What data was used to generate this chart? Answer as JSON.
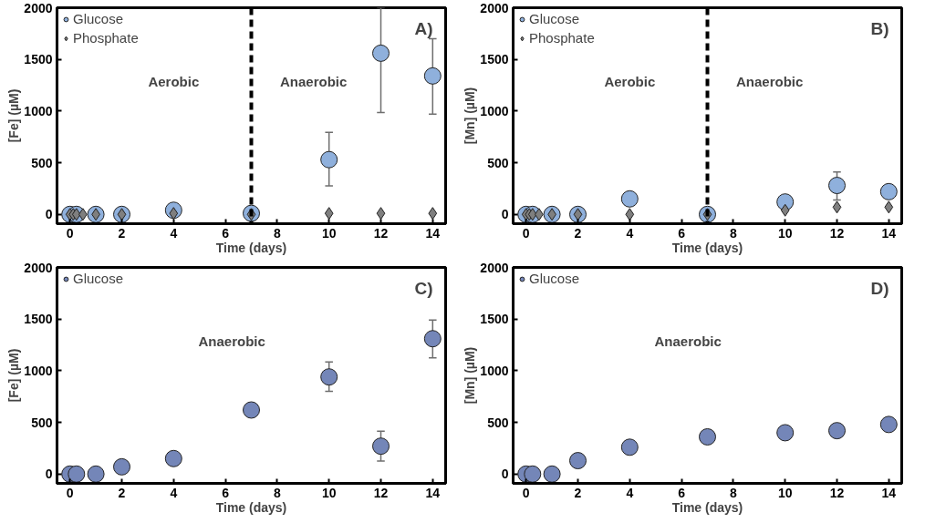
{
  "chart_data": [
    {
      "type": "scatter",
      "xlabel": "Time (days)",
      "ylabel": "[Fe] (µM)",
      "xlim": [
        -0.5,
        14.5
      ],
      "ylim": [
        -90,
        2000
      ],
      "xticks": [
        0,
        2,
        4,
        6,
        8,
        10,
        12,
        14
      ],
      "yticks": [
        0,
        500,
        1000,
        1500,
        2000
      ],
      "grid": false,
      "legend": "top left",
      "annotations": [
        "A)",
        "Aerobic",
        "Anaerobic"
      ],
      "ref_lines": [
        {
          "axis": "x",
          "value": 7,
          "color": "#000000",
          "line_style": "dashed"
        }
      ],
      "series": [
        {
          "name": "Glucose",
          "color": "#8fb0dc",
          "marker": "circle",
          "x": [
            0,
            0.25,
            1,
            2,
            4,
            7,
            10,
            12,
            14
          ],
          "values": [
            0,
            0,
            0,
            0,
            40,
            10,
            530,
            1560,
            1340
          ],
          "errors": [
            null,
            null,
            null,
            null,
            null,
            null,
            [
              275,
              795
            ],
            [
              985,
              2000
            ],
            [
              970,
              1700
            ]
          ]
        },
        {
          "name": "Phosphate",
          "color": "#7f7f7f",
          "marker": "diamond",
          "x": [
            0,
            0.125,
            0.25,
            0.5,
            1,
            2,
            4,
            7,
            10,
            12,
            14
          ],
          "values": [
            0,
            0,
            0,
            0,
            0,
            0,
            10,
            0,
            10,
            10,
            10
          ]
        }
      ]
    },
    {
      "type": "scatter",
      "xlabel": "Time (days)",
      "ylabel": "[Mn] (µM)",
      "xlim": [
        -0.5,
        14.5
      ],
      "ylim": [
        -90,
        2000
      ],
      "xticks": [
        0,
        2,
        4,
        6,
        8,
        10,
        12,
        14
      ],
      "yticks": [
        0,
        500,
        1000,
        1500,
        2000
      ],
      "grid": false,
      "legend": "top left",
      "annotations": [
        "B)",
        "Aerobic",
        "Anaerobic"
      ],
      "ref_lines": [
        {
          "axis": "x",
          "value": 7,
          "color": "#000000",
          "line_style": "dashed"
        }
      ],
      "series": [
        {
          "name": "Glucose",
          "color": "#8fb0dc",
          "marker": "circle",
          "x": [
            0,
            0.25,
            1,
            2,
            4,
            7,
            10,
            12,
            14
          ],
          "values": [
            0,
            0,
            0,
            0,
            150,
            0,
            120,
            280,
            220
          ],
          "errors": [
            null,
            null,
            null,
            null,
            null,
            null,
            null,
            [
              140,
              410
            ],
            null
          ]
        },
        {
          "name": "Phosphate",
          "color": "#7f7f7f",
          "marker": "diamond",
          "x": [
            0,
            0.125,
            0.25,
            0.5,
            1,
            2,
            4,
            7,
            10,
            12,
            14
          ],
          "values": [
            0,
            0,
            0,
            0,
            0,
            0,
            0,
            0,
            40,
            70,
            70
          ]
        }
      ]
    },
    {
      "type": "scatter",
      "xlabel": "Time (days)",
      "ylabel": "[Fe] (µM)",
      "xlim": [
        -0.5,
        14.5
      ],
      "ylim": [
        -90,
        2000
      ],
      "xticks": [
        0,
        2,
        4,
        6,
        8,
        10,
        12,
        14
      ],
      "yticks": [
        0,
        500,
        1000,
        1500,
        2000
      ],
      "grid": false,
      "legend": "top left",
      "annotations": [
        "C)",
        "Anaerobic"
      ],
      "series": [
        {
          "name": "Glucose",
          "color": "#7486b8",
          "marker": "circle",
          "x": [
            0,
            0.25,
            1,
            2,
            4,
            7,
            10,
            12,
            14
          ],
          "values": [
            0,
            0,
            0,
            70,
            150,
            620,
            940,
            270,
            1310
          ],
          "errors": [
            null,
            null,
            null,
            null,
            null,
            null,
            [
              800,
              1085
            ],
            [
              125,
              415
            ],
            [
              1125,
              1490
            ]
          ]
        }
      ]
    },
    {
      "type": "scatter",
      "xlabel": "Time (days)",
      "ylabel": "[Mn] (µM)",
      "xlim": [
        -0.5,
        14.5
      ],
      "ylim": [
        -90,
        2000
      ],
      "xticks": [
        0,
        2,
        4,
        6,
        8,
        10,
        12,
        14
      ],
      "yticks": [
        0,
        500,
        1000,
        1500,
        2000
      ],
      "grid": false,
      "legend": "top left",
      "annotations": [
        "D)",
        "Anaerobic"
      ],
      "series": [
        {
          "name": "Glucose",
          "color": "#7486b8",
          "marker": "circle",
          "x": [
            0,
            0.25,
            1,
            2,
            4,
            7,
            10,
            12,
            14
          ],
          "values": [
            0,
            0,
            0,
            130,
            260,
            360,
            400,
            420,
            480
          ]
        }
      ]
    }
  ]
}
